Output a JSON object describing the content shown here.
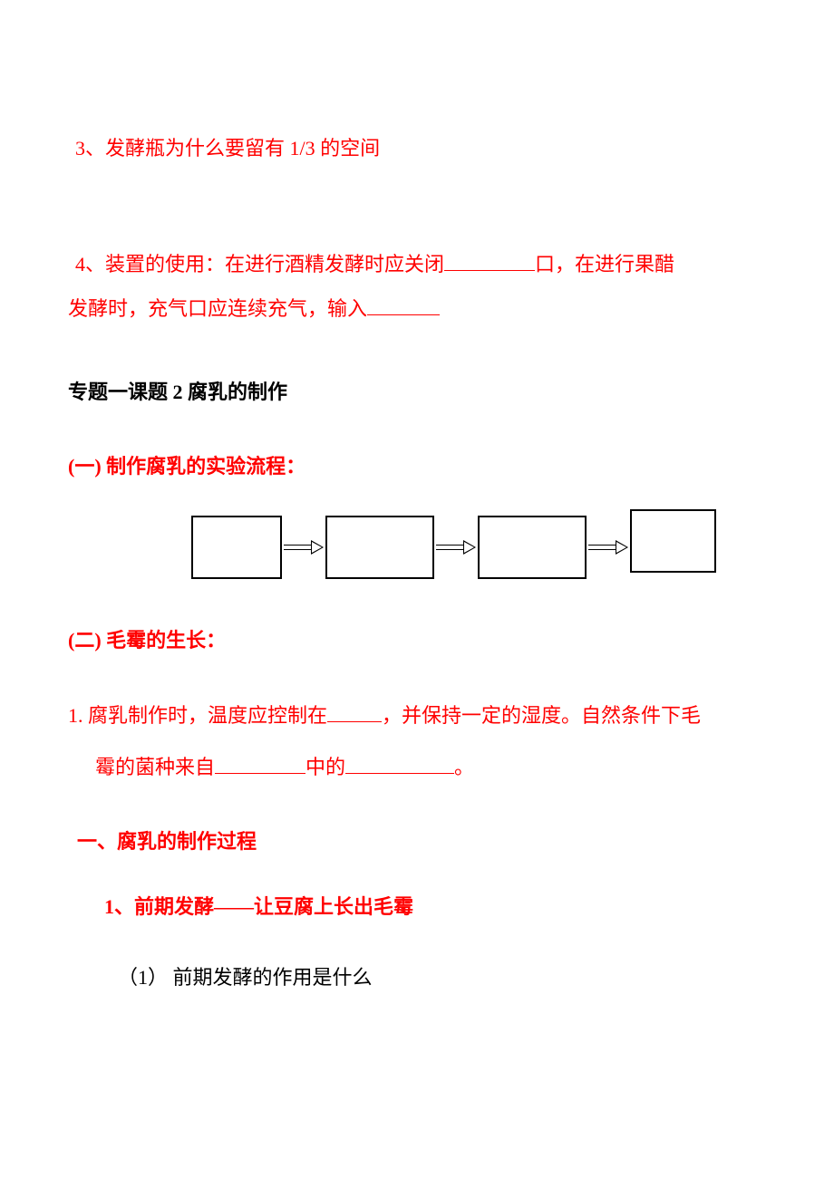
{
  "q3": {
    "text": "3、发酵瓶为什么要留有 1/3 的空间"
  },
  "q4": {
    "part1": "4、装置的使用：在进行酒精发酵时应关闭",
    "part2": "口，在进行果醋",
    "line2_part1": "发酵时，充气口应连续充气，输入"
  },
  "section_title": "专题一课题 2  腐乳的制作",
  "sub1": {
    "title": "(一) 制作腐乳的实验流程："
  },
  "sub2": {
    "title": "(二) 毛霉的生长："
  },
  "para1": {
    "part1": "1. 腐乳制作时，温度应控制在",
    "part2": "，并保持一定的湿度。自然条件下毛",
    "line2_part1": "霉的菌种来自",
    "line2_part2": "中的",
    "line2_part3": "。"
  },
  "heading_one": "一、腐乳的制作过程",
  "heading_sub1": "1、前期发酵——让豆腐上长出毛霉",
  "sub_item1": "（1） 前期发酵的作用是什么",
  "flowchart": {
    "type": "flowchart",
    "box_count": 4,
    "box_border_color": "#000000",
    "box_fill_color": "#ffffff",
    "arrow_color": "#000000",
    "arrow_style": "hollow"
  },
  "colors": {
    "primary_text": "#ff0000",
    "secondary_text": "#000000",
    "background": "#ffffff",
    "underline": "#ff0000"
  },
  "typography": {
    "body_fontsize": 22,
    "font_family": "SimSun"
  }
}
